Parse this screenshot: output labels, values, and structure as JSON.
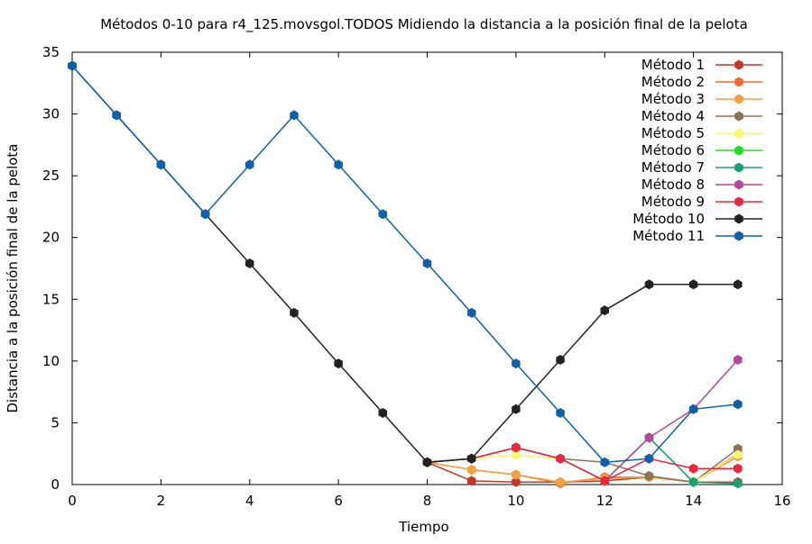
{
  "chart_data": {
    "type": "line",
    "title": "Métodos 0-10 para r4_125.movsgol.TODOS Midiendo la distancia a la posición final de la pelota",
    "xlabel": "Tiempo",
    "ylabel": "Distancia a la posición final de la pelota",
    "xlim": [
      0,
      16
    ],
    "ylim": [
      0,
      35
    ],
    "xticks": [
      0,
      2,
      4,
      6,
      8,
      10,
      12,
      14,
      16
    ],
    "yticks": [
      0,
      5,
      10,
      15,
      20,
      25,
      30,
      35
    ],
    "grid": false,
    "legend_position": "top-right",
    "series": [
      {
        "name": "Método 1",
        "color": "#c0392b",
        "x": [
          8,
          9,
          10,
          11,
          12,
          13,
          14,
          15
        ],
        "y": [
          1.8,
          0.3,
          0.2,
          0.2,
          0.3,
          0.6,
          0.2,
          0.2
        ]
      },
      {
        "name": "Método 2",
        "color": "#f06a32",
        "x": [
          8,
          9,
          10,
          11,
          12,
          13,
          14,
          15
        ],
        "y": [
          1.8,
          1.2,
          0.8,
          0.1,
          0.6,
          0.6,
          0.2,
          2.3
        ]
      },
      {
        "name": "Método 3",
        "color": "#f5a142",
        "x": [
          8,
          9,
          10,
          11,
          12,
          13,
          14,
          15
        ],
        "y": [
          1.8,
          1.2,
          0.8,
          0.2,
          0.5,
          0.6,
          0.2,
          2.5
        ]
      },
      {
        "name": "Método 4",
        "color": "#8b7355",
        "x": [
          8,
          9,
          10,
          11,
          12,
          13,
          14,
          15
        ],
        "y": [
          1.8,
          2.1,
          3.0,
          2.1,
          1.8,
          0.7,
          0.2,
          2.9
        ]
      },
      {
        "name": "Método 5",
        "color": "#f8f86c",
        "x": [
          8,
          9,
          10,
          11,
          12,
          13,
          14,
          15
        ],
        "y": [
          1.8,
          2.1,
          2.4,
          2.1,
          0.3,
          3.8,
          0.2,
          2.4
        ]
      },
      {
        "name": "Método 6",
        "color": "#22dd22",
        "x": [
          8,
          9,
          10,
          11,
          12,
          13,
          14,
          15
        ],
        "y": [
          1.8,
          2.1,
          3.0,
          2.1,
          0.3,
          3.8,
          0.2,
          0.1
        ]
      },
      {
        "name": "Método 7",
        "color": "#1aa071",
        "x": [
          8,
          9,
          10,
          11,
          12,
          13,
          14,
          15
        ],
        "y": [
          1.8,
          2.1,
          3.0,
          2.1,
          0.3,
          3.8,
          0.2,
          0.1
        ]
      },
      {
        "name": "Método 8",
        "color": "#b5479a",
        "x": [
          8,
          9,
          10,
          11,
          12,
          13,
          14,
          15
        ],
        "y": [
          1.8,
          2.1,
          3.0,
          2.1,
          0.3,
          3.8,
          6.1,
          10.1
        ]
      },
      {
        "name": "Método 9",
        "color": "#e8283f",
        "x": [
          8,
          9,
          10,
          11,
          12,
          13,
          14,
          15
        ],
        "y": [
          1.8,
          2.1,
          3.0,
          2.1,
          0.3,
          2.1,
          1.3,
          1.3
        ]
      },
      {
        "name": "Método 10",
        "color": "#222222",
        "x": [
          0,
          1,
          2,
          3,
          4,
          5,
          6,
          7,
          8,
          9,
          10,
          11,
          12,
          13,
          14,
          15
        ],
        "y": [
          33.9,
          29.9,
          25.9,
          21.9,
          17.9,
          13.9,
          9.8,
          5.8,
          1.8,
          2.1,
          6.1,
          10.1,
          14.1,
          16.2,
          16.2,
          16.2
        ]
      },
      {
        "name": "Método 11",
        "color": "#1060a8",
        "x": [
          0,
          1,
          2,
          3,
          4,
          5,
          6,
          7,
          8,
          9,
          10,
          11,
          12,
          13,
          14,
          15
        ],
        "y": [
          33.9,
          29.9,
          25.9,
          21.9,
          25.9,
          29.9,
          25.9,
          21.9,
          17.9,
          13.9,
          9.8,
          5.8,
          1.8,
          2.1,
          6.1,
          6.5
        ]
      }
    ]
  }
}
